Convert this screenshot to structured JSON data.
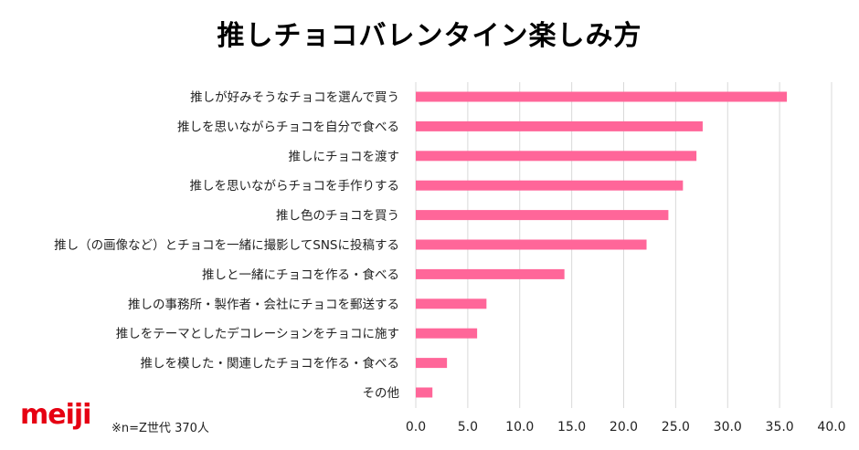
{
  "chart_data": {
    "type": "bar",
    "orientation": "horizontal",
    "title": "推しチョコバレンタイン楽しみ方",
    "categories": [
      "推しが好みそうなチョコを選んで買う",
      "推しを思いながらチョコを自分で食べる",
      "推しにチョコを渡す",
      "推しを思いながらチョコを手作りする",
      "推し色のチョコを買う",
      "推し（の画像など）とチョコを一緒に撮影してSNSに投稿する",
      "推しと一緒にチョコを作る・食べる",
      "推しの事務所・製作者・会社にチョコを郵送する",
      "推しをテーマとしたデコレーションをチョコに施す",
      "推しを模した・関連したチョコを作る・食べる",
      "その他"
    ],
    "values": [
      35.7,
      27.6,
      27.0,
      25.7,
      24.3,
      22.2,
      14.3,
      6.8,
      5.9,
      3.0,
      1.6
    ],
    "xlim": [
      0,
      40
    ],
    "xticks": [
      "0.0",
      "5.0",
      "10.0",
      "15.0",
      "20.0",
      "25.0",
      "30.0",
      "35.0",
      "40.0"
    ],
    "xlabel": "",
    "ylabel": "",
    "grid": true,
    "bar_color": "#ff6699"
  },
  "brand": {
    "logo": "meiji",
    "color": "#e60012"
  },
  "note": "※n=Z世代 370人"
}
